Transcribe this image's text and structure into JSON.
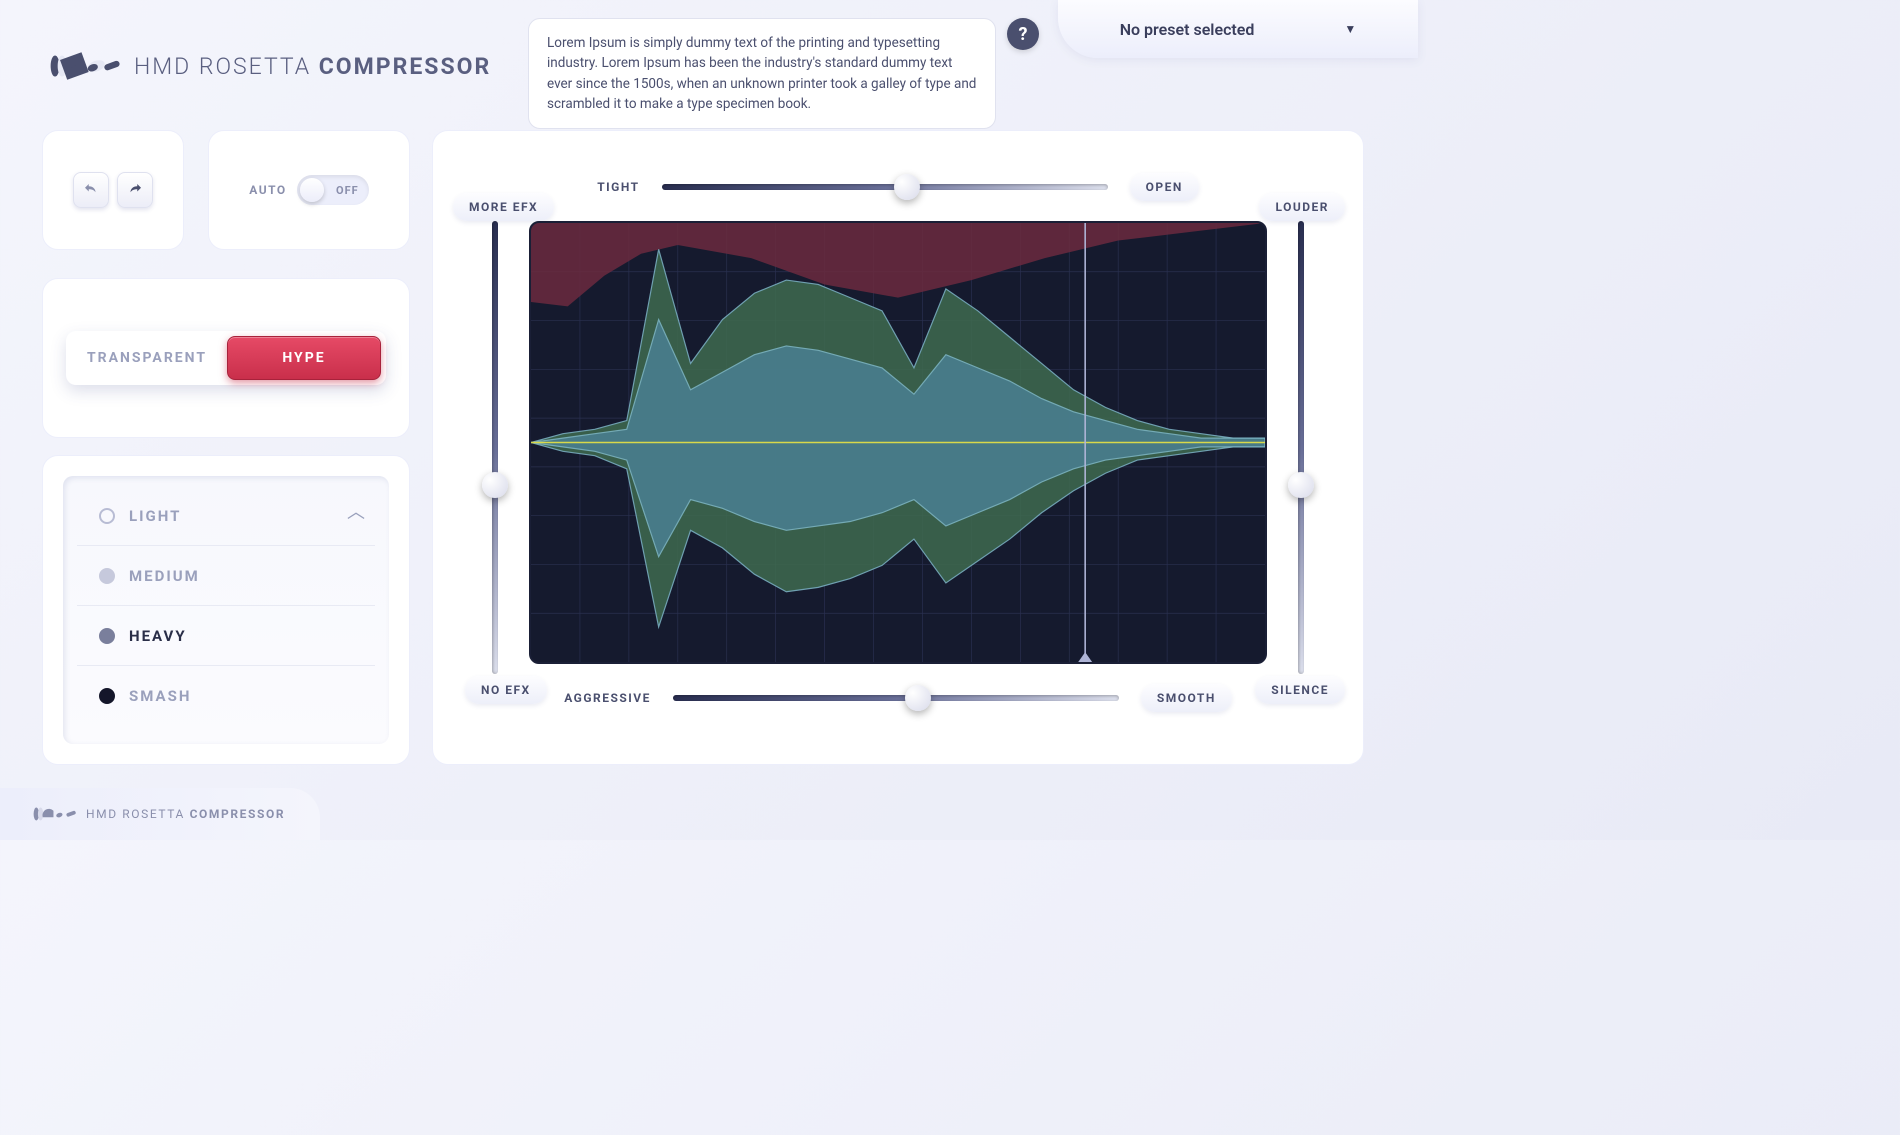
{
  "brand": {
    "line1": "HMD ROSETTA",
    "line2": "COMPRESSOR"
  },
  "tooltip": "Lorem Ipsum is simply dummy text of the printing and typesetting industry. Lorem Ipsum has been the industry's standard dummy text ever since the 1500s, when an unknown printer took a galley of type and scrambled it to make a type specimen book.",
  "preset": {
    "label": "No preset selected"
  },
  "auto": {
    "label": "AUTO",
    "state": "OFF"
  },
  "mode": {
    "options": [
      "TRANSPARENT",
      "HYPE"
    ],
    "active_index": 1
  },
  "weights": {
    "items": [
      {
        "label": "LIGHT",
        "dot": 0,
        "selected": false
      },
      {
        "label": "MEDIUM",
        "dot": 1,
        "selected": false
      },
      {
        "label": "HEAVY",
        "dot": 2,
        "selected": true
      },
      {
        "label": "SMASH",
        "dot": 3,
        "selected": false
      }
    ]
  },
  "sliders": {
    "top": {
      "left_label": "TIGHT",
      "right_label": "OPEN",
      "value": 0.55
    },
    "bottom": {
      "left_label": "AGGRESSIVE",
      "right_label": "SMOOTH",
      "value": 0.55
    },
    "left": {
      "top_label": "MORE EFX",
      "bottom_label": "NO EFX",
      "value": 0.58
    },
    "right": {
      "top_label": "LOUDER",
      "bottom_label": "SILENCE",
      "value": 0.58
    }
  },
  "viz": {
    "bg": "#151a2e",
    "grid_color": "#2a3050",
    "midline_color": "#d8d84a",
    "playhead_x": 0.755,
    "top_shape": {
      "fill": "#6b2a3e",
      "opacity": 0.85,
      "points": [
        [
          0,
          0.18
        ],
        [
          0.05,
          0.19
        ],
        [
          0.1,
          0.12
        ],
        [
          0.15,
          0.07
        ],
        [
          0.2,
          0.05
        ],
        [
          0.3,
          0.08
        ],
        [
          0.4,
          0.14
        ],
        [
          0.5,
          0.17
        ],
        [
          0.6,
          0.13
        ],
        [
          0.7,
          0.08
        ],
        [
          0.8,
          0.04
        ],
        [
          0.9,
          0.02
        ],
        [
          1,
          0.0
        ]
      ]
    },
    "waveform": {
      "fill_outer": "#3f6b4f",
      "fill_inner": "#4a7f92",
      "stroke": "#7fb8c8",
      "mid": 0.5,
      "outer_top": [
        0,
        0.02,
        0.03,
        0.05,
        0.44,
        0.18,
        0.28,
        0.34,
        0.37,
        0.36,
        0.33,
        0.3,
        0.17,
        0.35,
        0.3,
        0.24,
        0.18,
        0.12,
        0.08,
        0.05,
        0.03,
        0.02,
        0.01,
        0.01
      ],
      "outer_bot": [
        0,
        0.02,
        0.03,
        0.06,
        0.42,
        0.2,
        0.24,
        0.3,
        0.34,
        0.33,
        0.31,
        0.28,
        0.22,
        0.32,
        0.27,
        0.22,
        0.16,
        0.11,
        0.07,
        0.04,
        0.03,
        0.02,
        0.01,
        0.01
      ],
      "inner_top": [
        0,
        0.01,
        0.02,
        0.03,
        0.28,
        0.12,
        0.16,
        0.2,
        0.22,
        0.21,
        0.19,
        0.17,
        0.11,
        0.2,
        0.17,
        0.14,
        0.1,
        0.07,
        0.05,
        0.03,
        0.02,
        0.01,
        0.01,
        0.01
      ],
      "inner_bot": [
        0,
        0.01,
        0.02,
        0.04,
        0.26,
        0.13,
        0.15,
        0.18,
        0.2,
        0.19,
        0.18,
        0.16,
        0.13,
        0.19,
        0.16,
        0.13,
        0.09,
        0.06,
        0.04,
        0.03,
        0.02,
        0.01,
        0.01,
        0.01
      ]
    }
  },
  "colors": {
    "accent_red": "#c92f4b",
    "text": "#3a3e5c",
    "muted": "#9aa0bc"
  }
}
